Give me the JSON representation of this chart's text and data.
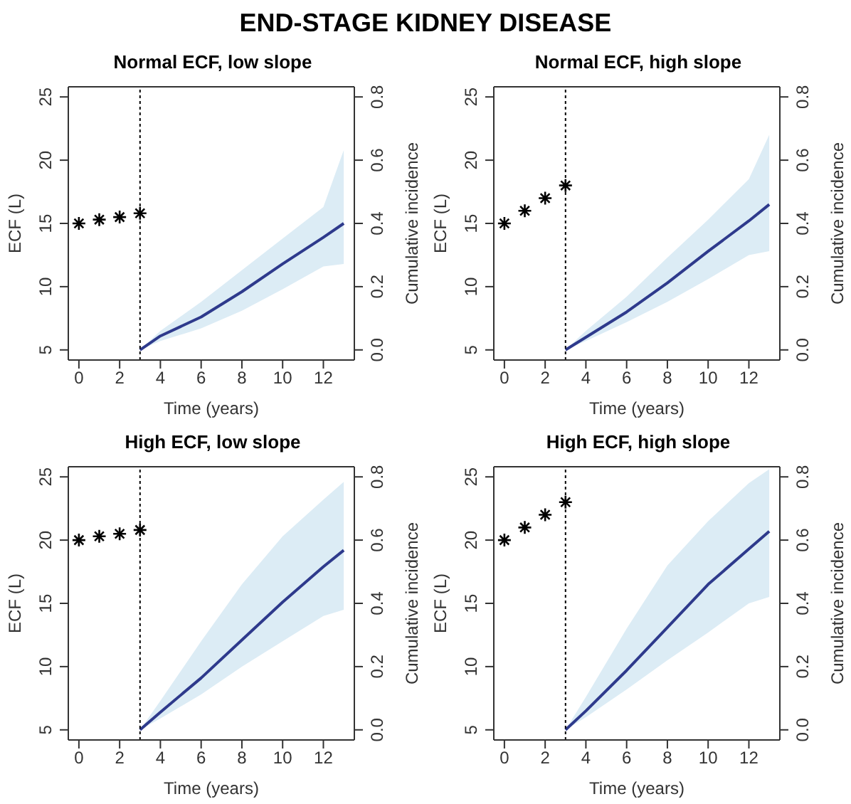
{
  "chart_data": [
    {
      "type": "line",
      "title": "Normal ECF, low slope",
      "annotations": [
        "END-STAGE KIDNEY DISEASE"
      ],
      "xlabel": "Time (years)",
      "ylabel": "ECF (L)",
      "y2label": "Cumulative incidence",
      "xlim": [
        -0.52,
        13.52
      ],
      "xticks": [
        0,
        2,
        4,
        6,
        8,
        10,
        12
      ],
      "ylim": [
        4.2,
        25.8
      ],
      "yticks": [
        5,
        10,
        15,
        20,
        25
      ],
      "y2lim": [
        -0.032,
        0.832
      ],
      "y2ticks": [
        {
          "value": 0,
          "label": "0.0"
        },
        {
          "value": 0.2,
          "label": "0.2"
        },
        {
          "value": 0.4,
          "label": "0.4"
        },
        {
          "value": 0.6,
          "label": "0.6"
        },
        {
          "value": 0.8,
          "label": "0.8"
        }
      ],
      "grid": false,
      "legend": false,
      "ref_lines": [
        {
          "axis": "x",
          "value": 3,
          "color": "#000000",
          "line_style": "dotted"
        }
      ],
      "series": [
        {
          "type": "scatter",
          "marker": "cross",
          "color": "#000000",
          "x": [
            0,
            1,
            2,
            3
          ],
          "values": [
            15,
            15.3,
            15.5,
            15.8
          ]
        },
        {
          "axis": "y2",
          "color": "#2e3a8c",
          "x": [
            3,
            4,
            6,
            8,
            10,
            12,
            13
          ],
          "values": [
            0,
            0.044,
            0.104,
            0.184,
            0.272,
            0.356,
            0.4
          ],
          "lower": [
            0,
            0.028,
            0.068,
            0.124,
            0.192,
            0.264,
            0.272
          ],
          "upper": [
            0,
            0.06,
            0.152,
            0.252,
            0.352,
            0.452,
            0.632
          ]
        }
      ]
    },
    {
      "type": "line",
      "title": "Normal ECF, high slope",
      "xlabel": "Time (years)",
      "ylabel": "ECF (L)",
      "y2label": "Cumulative incidence",
      "xlim": [
        -0.52,
        13.52
      ],
      "xticks": [
        0,
        2,
        4,
        6,
        8,
        10,
        12
      ],
      "ylim": [
        4.2,
        25.8
      ],
      "yticks": [
        5,
        10,
        15,
        20,
        25
      ],
      "y2lim": [
        -0.032,
        0.832
      ],
      "y2ticks": [
        {
          "value": 0,
          "label": "0.0"
        },
        {
          "value": 0.2,
          "label": "0.2"
        },
        {
          "value": 0.4,
          "label": "0.4"
        },
        {
          "value": 0.6,
          "label": "0.6"
        },
        {
          "value": 0.8,
          "label": "0.8"
        }
      ],
      "grid": false,
      "legend": false,
      "ref_lines": [
        {
          "axis": "x",
          "value": 3,
          "color": "#000000",
          "line_style": "dotted"
        }
      ],
      "series": [
        {
          "type": "scatter",
          "marker": "cross",
          "color": "#000000",
          "x": [
            0,
            1,
            2,
            3
          ],
          "values": [
            15,
            16,
            17,
            18
          ]
        },
        {
          "axis": "y2",
          "color": "#2e3a8c",
          "x": [
            3,
            4,
            6,
            8,
            10,
            12,
            13
          ],
          "values": [
            0,
            0.04,
            0.12,
            0.212,
            0.312,
            0.408,
            0.46
          ],
          "lower": [
            0,
            0.028,
            0.088,
            0.152,
            0.224,
            0.3,
            0.312
          ],
          "upper": [
            0,
            0.06,
            0.168,
            0.292,
            0.412,
            0.54,
            0.68
          ]
        }
      ]
    },
    {
      "type": "line",
      "title": "High ECF, low slope",
      "xlabel": "Time (years)",
      "ylabel": "ECF (L)",
      "y2label": "Cumulative incidence",
      "xlim": [
        -0.52,
        13.52
      ],
      "xticks": [
        0,
        2,
        4,
        6,
        8,
        10,
        12
      ],
      "ylim": [
        4.2,
        25.8
      ],
      "yticks": [
        5,
        10,
        15,
        20,
        25
      ],
      "y2lim": [
        -0.032,
        0.832
      ],
      "y2ticks": [
        {
          "value": 0,
          "label": "0.0"
        },
        {
          "value": 0.2,
          "label": "0.2"
        },
        {
          "value": 0.4,
          "label": "0.4"
        },
        {
          "value": 0.6,
          "label": "0.6"
        },
        {
          "value": 0.8,
          "label": "0.8"
        }
      ],
      "grid": false,
      "legend": false,
      "ref_lines": [
        {
          "axis": "x",
          "value": 3,
          "color": "#000000",
          "line_style": "dotted"
        }
      ],
      "series": [
        {
          "type": "scatter",
          "marker": "cross",
          "color": "#000000",
          "x": [
            0,
            1,
            2,
            3
          ],
          "values": [
            20,
            20.3,
            20.5,
            20.8
          ]
        },
        {
          "axis": "y2",
          "color": "#2e3a8c",
          "x": [
            3,
            4,
            6,
            8,
            10,
            12,
            13
          ],
          "values": [
            0,
            0.056,
            0.164,
            0.284,
            0.404,
            0.516,
            0.568
          ],
          "lower": [
            0,
            0.036,
            0.112,
            0.2,
            0.28,
            0.36,
            0.38
          ],
          "upper": [
            0,
            0.092,
            0.28,
            0.46,
            0.612,
            0.728,
            0.784
          ]
        }
      ]
    },
    {
      "type": "line",
      "title": "High ECF, high slope",
      "xlabel": "Time (years)",
      "ylabel": "ECF (L)",
      "y2label": "Cumulative incidence",
      "xlim": [
        -0.52,
        13.52
      ],
      "xticks": [
        0,
        2,
        4,
        6,
        8,
        10,
        12
      ],
      "ylim": [
        4.2,
        25.8
      ],
      "yticks": [
        5,
        10,
        15,
        20,
        25
      ],
      "y2lim": [
        -0.032,
        0.832
      ],
      "y2ticks": [
        {
          "value": 0,
          "label": "0.0"
        },
        {
          "value": 0.2,
          "label": "0.2"
        },
        {
          "value": 0.4,
          "label": "0.4"
        },
        {
          "value": 0.6,
          "label": "0.6"
        },
        {
          "value": 0.8,
          "label": "0.8"
        }
      ],
      "grid": false,
      "legend": false,
      "ref_lines": [
        {
          "axis": "x",
          "value": 3,
          "color": "#000000",
          "line_style": "dotted"
        }
      ],
      "series": [
        {
          "type": "scatter",
          "marker": "cross",
          "color": "#000000",
          "x": [
            0,
            1,
            2,
            3
          ],
          "values": [
            20,
            21,
            22,
            23
          ]
        },
        {
          "axis": "y2",
          "color": "#2e3a8c",
          "x": [
            3,
            4,
            6,
            8,
            10,
            12,
            13
          ],
          "values": [
            0,
            0.06,
            0.188,
            0.324,
            0.46,
            0.572,
            0.628
          ],
          "lower": [
            0,
            0.04,
            0.128,
            0.22,
            0.308,
            0.4,
            0.42
          ],
          "upper": [
            0,
            0.104,
            0.32,
            0.52,
            0.66,
            0.78,
            0.824
          ]
        }
      ]
    }
  ]
}
